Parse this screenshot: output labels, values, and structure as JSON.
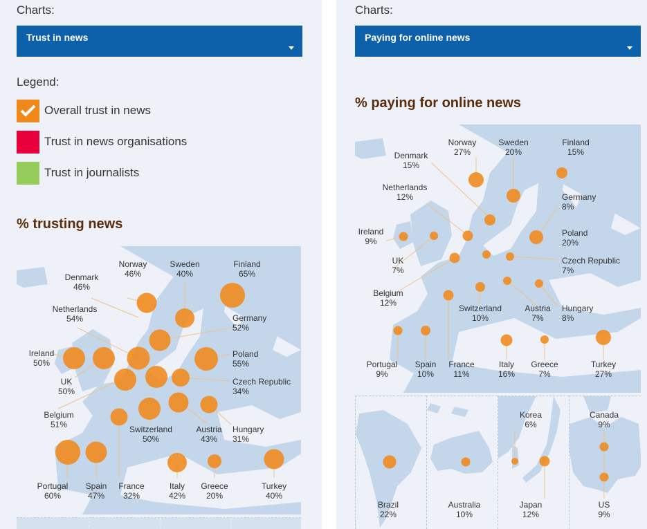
{
  "left_panel": {
    "charts_label": "Charts:",
    "dropdown_value": "Trust in news",
    "legend_title": "Legend:",
    "legend": [
      {
        "label": "Overall trust in news",
        "color": "#f0891a",
        "checked": true
      },
      {
        "label": "Trust in news organisations",
        "color": "#e8003d",
        "checked": false
      },
      {
        "label": "Trust in journalists",
        "color": "#95cc5c",
        "checked": false
      }
    ],
    "map_title": "% trusting news",
    "countries": [
      {
        "name": "Norway",
        "value": "46%"
      },
      {
        "name": "Sweden",
        "value": "40%"
      },
      {
        "name": "Finland",
        "value": "65%"
      },
      {
        "name": "Denmark",
        "value": "46%"
      },
      {
        "name": "Netherlands",
        "value": "54%"
      },
      {
        "name": "Germany",
        "value": "52%"
      },
      {
        "name": "Ireland",
        "value": "50%"
      },
      {
        "name": "Poland",
        "value": "55%"
      },
      {
        "name": "UK",
        "value": "50%"
      },
      {
        "name": "Czech Republic",
        "value": "34%"
      },
      {
        "name": "Belgium",
        "value": "51%"
      },
      {
        "name": "Switzerland",
        "value": "50%"
      },
      {
        "name": "Austria",
        "value": "43%"
      },
      {
        "name": "Hungary",
        "value": "31%"
      },
      {
        "name": "Portugal",
        "value": "60%"
      },
      {
        "name": "Spain",
        "value": "47%"
      },
      {
        "name": "France",
        "value": "32%"
      },
      {
        "name": "Italy",
        "value": "42%"
      },
      {
        "name": "Greece",
        "value": "20%"
      },
      {
        "name": "Turkey",
        "value": "40%"
      }
    ]
  },
  "right_panel": {
    "charts_label": "Charts:",
    "dropdown_value": "Paying for online news",
    "map_title": "% paying for online news",
    "countries": [
      {
        "name": "Norway",
        "value": "27%"
      },
      {
        "name": "Sweden",
        "value": "20%"
      },
      {
        "name": "Finland",
        "value": "15%"
      },
      {
        "name": "Denmark",
        "value": "15%"
      },
      {
        "name": "Netherlands",
        "value": "12%"
      },
      {
        "name": "Germany",
        "value": "8%"
      },
      {
        "name": "Ireland",
        "value": "9%"
      },
      {
        "name": "Poland",
        "value": "20%"
      },
      {
        "name": "UK",
        "value": "7%"
      },
      {
        "name": "Czech Republic",
        "value": "7%"
      },
      {
        "name": "Belgium",
        "value": "12%"
      },
      {
        "name": "Switzerland",
        "value": "10%"
      },
      {
        "name": "Austria",
        "value": "7%"
      },
      {
        "name": "Hungary",
        "value": "8%"
      },
      {
        "name": "Portugal",
        "value": "9%"
      },
      {
        "name": "Spain",
        "value": "10%"
      },
      {
        "name": "France",
        "value": "11%"
      },
      {
        "name": "Italy",
        "value": "16%"
      },
      {
        "name": "Greece",
        "value": "7%"
      },
      {
        "name": "Turkey",
        "value": "27%"
      }
    ],
    "world": [
      {
        "name": "Brazil",
        "value": "22%"
      },
      {
        "name": "Australia",
        "value": "10%"
      },
      {
        "name": "Korea",
        "value": "6%"
      },
      {
        "name": "Japan",
        "value": "12%"
      },
      {
        "name": "Canada",
        "value": "9%"
      },
      {
        "name": "US",
        "value": "9%"
      }
    ]
  },
  "colors": {
    "accent": "#0d61aa",
    "bubble": "#f0891a",
    "land": "#c3d6ea",
    "sea": "#eef2f8",
    "title": "#5a2d0c"
  }
}
